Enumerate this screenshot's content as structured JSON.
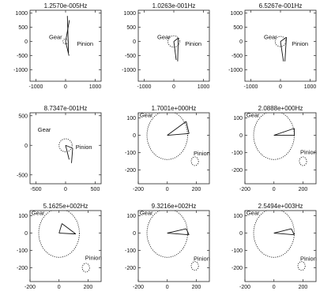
{
  "chart_data": [
    {
      "type": "scatter",
      "title": "1.2570e-005Hz",
      "xlim": [
        -1200,
        1200
      ],
      "ylim": [
        -1400,
        1100
      ],
      "xticks": [
        -1000,
        0,
        1000
      ],
      "yticks": [
        1000,
        500,
        0,
        -500,
        -1000
      ],
      "xtick_labels": [
        "-1000",
        "0",
        "1000"
      ],
      "ytick_labels": [
        "1000",
        "500",
        "0",
        "-500",
        "-1000"
      ],
      "gear": {
        "label": "Gear",
        "label_at": [
          -560,
          80
        ],
        "center": [
          0,
          0
        ],
        "radius": 90
      },
      "pinion": {
        "label": "Pinion",
        "label_at": [
          380,
          -150
        ],
        "center": [
          80,
          0
        ],
        "radius": 0
      },
      "vectors": [
        {
          "from": [
            0,
            0
          ],
          "to": [
            130,
            750
          ]
        },
        {
          "from": [
            0,
            0
          ],
          "to": [
            115,
            -500
          ]
        },
        {
          "from": [
            60,
            900
          ],
          "to": [
            100,
            -400
          ]
        }
      ]
    },
    {
      "type": "scatter",
      "title": "1.0263e-001Hz",
      "xlim": [
        -1200,
        1200
      ],
      "ylim": [
        -1400,
        1100
      ],
      "xticks": [
        -1000,
        0,
        1000
      ],
      "yticks": [
        1000,
        500,
        0,
        -500,
        -1000
      ],
      "xtick_labels": [
        "-1000",
        "0",
        "1000"
      ],
      "ytick_labels": [
        "1000",
        "500",
        "0",
        "-500",
        "-1000"
      ],
      "gear": {
        "label": "Gear",
        "label_at": [
          -560,
          80
        ],
        "center": [
          0,
          0
        ],
        "radius": 200
      },
      "pinion": {
        "label": "Pinion",
        "label_at": [
          380,
          -150
        ],
        "center": [
          130,
          0
        ],
        "radius": 0
      },
      "vectors": [
        {
          "from": [
            0,
            0
          ],
          "to": [
            150,
            120
          ]
        },
        {
          "from": [
            150,
            120
          ],
          "to": [
            130,
            -700
          ]
        },
        {
          "from": [
            0,
            0
          ],
          "to": [
            80,
            -650
          ]
        }
      ]
    },
    {
      "type": "scatter",
      "title": "6.5267e-001Hz",
      "xlim": [
        -1200,
        1200
      ],
      "ylim": [
        -1400,
        1100
      ],
      "xticks": [
        -1000,
        0,
        1000
      ],
      "yticks": [
        1000,
        500,
        0,
        -500,
        -1000
      ],
      "xtick_labels": [
        "-1000",
        "0",
        "1000"
      ],
      "ytick_labels": [
        "1000",
        "500",
        "0",
        "-500",
        "-1000"
      ],
      "gear": {
        "label": "Gear",
        "label_at": [
          -560,
          80
        ],
        "center": [
          0,
          0
        ],
        "radius": 180
      },
      "pinion": {
        "label": "Pinion",
        "label_at": [
          380,
          -150
        ],
        "center": [
          150,
          0
        ],
        "radius": 0
      },
      "vectors": [
        {
          "from": [
            0,
            0
          ],
          "to": [
            200,
            150
          ]
        },
        {
          "from": [
            200,
            150
          ],
          "to": [
            150,
            -700
          ]
        },
        {
          "from": [
            0,
            0
          ],
          "to": [
            100,
            -700
          ]
        }
      ]
    },
    {
      "type": "scatter",
      "title": "8.7347e-001Hz",
      "xlim": [
        -600,
        600
      ],
      "ylim": [
        -650,
        550
      ],
      "xticks": [
        -500,
        0,
        500
      ],
      "yticks": [
        500,
        0,
        -500
      ],
      "xtick_labels": [
        "-500",
        "0",
        "500"
      ],
      "ytick_labels": [
        "500",
        "0",
        "-500"
      ],
      "gear": {
        "label": "Gear",
        "label_at": [
          -470,
          230
        ],
        "center": [
          0,
          0
        ],
        "radius": 110
      },
      "pinion": {
        "label": "Pinion",
        "label_at": [
          170,
          -60
        ],
        "center": [
          110,
          -60
        ],
        "radius": 0
      },
      "vectors": [
        {
          "from": [
            0,
            0
          ],
          "to": [
            120,
            -50
          ]
        },
        {
          "from": [
            120,
            -50
          ],
          "to": [
            100,
            -300
          ]
        },
        {
          "from": [
            0,
            0
          ],
          "to": [
            60,
            -240
          ]
        }
      ]
    },
    {
      "type": "scatter",
      "title": "1.7001e+000Hz",
      "xlim": [
        -200,
        290
      ],
      "ylim": [
        -280,
        130
      ],
      "xticks": [
        -200,
        0,
        200
      ],
      "yticks": [
        100,
        0,
        -100,
        -200
      ],
      "xtick_labels": [
        "-200",
        "0",
        "200"
      ],
      "ytick_labels": [
        "100",
        "0",
        "-100",
        "-200"
      ],
      "gear": {
        "label": "Gear",
        "label_at": [
          -190,
          105
        ],
        "center": [
          0,
          0
        ],
        "radius": 140
      },
      "pinion": {
        "label": "Pinion",
        "label_at": [
          215,
          -115
        ],
        "center": [
          190,
          -150
        ],
        "radius": 25
      },
      "vectors": [
        {
          "from": [
            0,
            0
          ],
          "to": [
            130,
            80
          ]
        },
        {
          "from": [
            130,
            80
          ],
          "to": [
            150,
            10
          ]
        },
        {
          "from": [
            0,
            0
          ],
          "to": [
            150,
            10
          ]
        }
      ]
    },
    {
      "type": "scatter",
      "title": "2.0888e+000Hz",
      "xlim": [
        -200,
        290
      ],
      "ylim": [
        -280,
        130
      ],
      "xticks": [
        -200,
        0,
        200
      ],
      "yticks": [
        100,
        0,
        -100,
        -200
      ],
      "xtick_labels": [
        "-200",
        "0",
        "200"
      ],
      "ytick_labels": [
        "100",
        "0",
        "-100",
        "-200"
      ],
      "gear": {
        "label": "Gear",
        "label_at": [
          -190,
          105
        ],
        "center": [
          0,
          0
        ],
        "radius": 140
      },
      "pinion": {
        "label": "Pinion",
        "label_at": [
          220,
          -110
        ],
        "center": [
          200,
          -150
        ],
        "radius": 25
      },
      "vectors": [
        {
          "from": [
            0,
            0
          ],
          "to": [
            140,
            40
          ]
        },
        {
          "from": [
            140,
            40
          ],
          "to": [
            140,
            0
          ]
        },
        {
          "from": [
            0,
            0
          ],
          "to": [
            140,
            0
          ]
        }
      ]
    },
    {
      "type": "scatter",
      "title": "5.1625e+002Hz",
      "xlim": [
        -200,
        290
      ],
      "ylim": [
        -280,
        130
      ],
      "xticks": [
        -200,
        0,
        200
      ],
      "yticks": [
        100,
        0,
        -100,
        -200
      ],
      "xtick_labels": [
        "-200",
        "0",
        "200"
      ],
      "ytick_labels": [
        "100",
        "0",
        "-100",
        "-200"
      ],
      "gear": {
        "label": "Gear",
        "label_at": [
          -190,
          105
        ],
        "center": [
          0,
          0
        ],
        "radius": 140
      },
      "pinion": {
        "label": "Pinion",
        "label_at": [
          180,
          -155
        ],
        "center": [
          185,
          -200
        ],
        "radius": 25
      },
      "vectors": [
        {
          "from": [
            0,
            0
          ],
          "to": [
            115,
            -5
          ]
        },
        {
          "from": [
            115,
            -5
          ],
          "to": [
            20,
            55
          ]
        },
        {
          "from": [
            20,
            55
          ],
          "to": [
            0,
            0
          ]
        }
      ]
    },
    {
      "type": "scatter",
      "title": "9.3216e+002Hz",
      "xlim": [
        -200,
        290
      ],
      "ylim": [
        -280,
        130
      ],
      "xticks": [
        -200,
        0,
        200
      ],
      "yticks": [
        100,
        0,
        -100,
        -200
      ],
      "xtick_labels": [
        "-200",
        "0",
        "200"
      ],
      "ytick_labels": [
        "100",
        "0",
        "-100",
        "-200"
      ],
      "gear": {
        "label": "Gear",
        "label_at": [
          -190,
          105
        ],
        "center": [
          0,
          0
        ],
        "radius": 140
      },
      "pinion": {
        "label": "Pinion",
        "label_at": [
          225,
          -160
        ],
        "center": [
          190,
          -190
        ],
        "radius": 25
      },
      "vectors": [
        {
          "from": [
            0,
            0
          ],
          "to": [
            150,
            -10
          ]
        },
        {
          "from": [
            150,
            -10
          ],
          "to": [
            130,
            25
          ]
        },
        {
          "from": [
            0,
            0
          ],
          "to": [
            130,
            25
          ]
        }
      ]
    },
    {
      "type": "scatter",
      "title": "2.5494e+003Hz",
      "xlim": [
        -200,
        290
      ],
      "ylim": [
        -280,
        130
      ],
      "xticks": [
        -200,
        0,
        200
      ],
      "yticks": [
        100,
        0,
        -100,
        -200
      ],
      "xtick_labels": [
        "-200",
        "0",
        "200"
      ],
      "ytick_labels": [
        "100",
        "0",
        "-100",
        "-200"
      ],
      "gear": {
        "label": "Gear",
        "label_at": [
          -190,
          105
        ],
        "center": [
          0,
          0
        ],
        "radius": 140
      },
      "pinion": {
        "label": "Pinion",
        "label_at": [
          225,
          -160
        ],
        "center": [
          190,
          -190
        ],
        "radius": 25
      },
      "vectors": [
        {
          "from": [
            0,
            0
          ],
          "to": [
            140,
            -10
          ]
        },
        {
          "from": [
            140,
            -10
          ],
          "to": [
            120,
            25
          ]
        },
        {
          "from": [
            0,
            0
          ],
          "to": [
            120,
            25
          ]
        }
      ]
    }
  ]
}
